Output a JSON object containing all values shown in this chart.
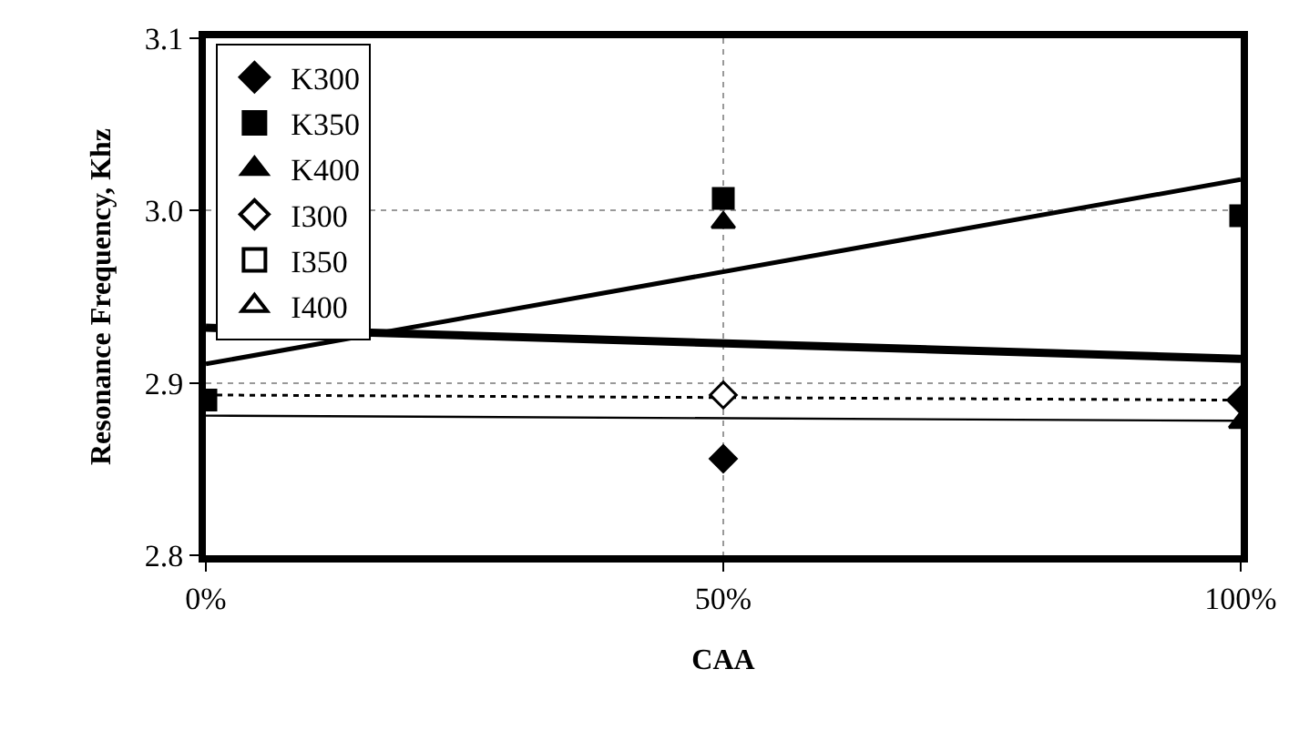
{
  "chart_data": {
    "type": "scatter",
    "xlabel": "CAA",
    "ylabel": "Resonance Frequency, Khz",
    "x": [
      0,
      0.5,
      1
    ],
    "xlim": [
      0,
      1
    ],
    "xticks": [
      {
        "value": 0,
        "label": "0%"
      },
      {
        "value": 0.5,
        "label": "50%"
      },
      {
        "value": 1,
        "label": "100%"
      }
    ],
    "ylim": [
      2.8,
      3.1
    ],
    "yticks": [
      {
        "value": 2.8,
        "label": "2.8"
      },
      {
        "value": 2.9,
        "label": "2.9"
      },
      {
        "value": 3.0,
        "label": "3.0"
      },
      {
        "value": 3.1,
        "label": "3.1"
      }
    ],
    "grid": true,
    "legend": "top left",
    "series": [
      {
        "type": "line",
        "values": [
          2.893,
          null,
          2.89
        ],
        "color": "#000000",
        "line_style": "dotted",
        "marker": "none"
      },
      {
        "type": "line",
        "values": [
          2.911,
          null,
          3.018
        ],
        "color": "#000000",
        "line_style": "solid",
        "marker": "none"
      },
      {
        "type": "line",
        "values": [
          2.932,
          null,
          2.914
        ],
        "color": "#000000",
        "line_style": "solid",
        "marker": "none"
      },
      {
        "type": "line",
        "values": [
          2.881,
          null,
          2.878
        ],
        "color": "#000000",
        "line_style": "solid",
        "marker": "none"
      },
      {
        "name": "K300",
        "color": "#000000",
        "marker": "diamond",
        "values": [
          null,
          2.856,
          2.89
        ]
      },
      {
        "name": "K350",
        "color": "#000000",
        "marker": "square",
        "values": [
          2.89,
          3.007,
          2.997
        ]
      },
      {
        "name": "K400",
        "color": "#000000",
        "marker": "triangle",
        "values": [
          null,
          2.993,
          2.877
        ]
      },
      {
        "name": "I300",
        "color": "#ffffff",
        "marker": "diamond",
        "values": [
          null,
          2.893,
          null
        ]
      },
      {
        "name": "I350",
        "color": "#ffffff",
        "marker": "square",
        "values": [
          null,
          null,
          null
        ]
      },
      {
        "name": "I400",
        "color": "#ffffff",
        "marker": "triangle",
        "values": [
          null,
          null,
          null
        ]
      }
    ]
  }
}
